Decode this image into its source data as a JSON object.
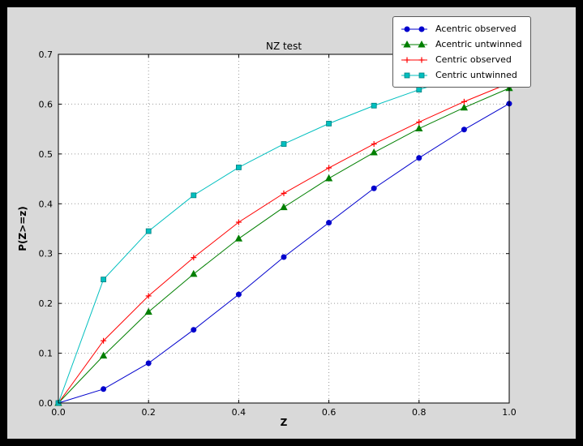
{
  "colors": {
    "window_bg": "#000000",
    "figure_bg": "#d9d9d9",
    "axes_bg": "#ffffff",
    "grid": "#9a9a9a",
    "spine": "#000000",
    "legend_border": "#5a5a5a"
  },
  "chart_data": {
    "type": "line",
    "title": "NZ test",
    "xlabel": "Z",
    "ylabel": "P(Z>=z)",
    "xlim": [
      0.0,
      1.0
    ],
    "ylim": [
      0.0,
      0.7
    ],
    "xticks": [
      0.0,
      0.2,
      0.4,
      0.6,
      0.8,
      1.0
    ],
    "yticks": [
      0.0,
      0.1,
      0.2,
      0.3,
      0.4,
      0.5,
      0.6,
      0.7
    ],
    "grid": true,
    "legend_position": "top-right",
    "x": [
      0.0,
      0.1,
      0.2,
      0.3,
      0.4,
      0.5,
      0.6,
      0.7,
      0.8,
      0.9,
      1.0
    ],
    "series": [
      {
        "name": "Acentric observed",
        "color": "#0000cd",
        "marker": "circle",
        "values": [
          0.0,
          0.028,
          0.08,
          0.147,
          0.218,
          0.293,
          0.362,
          0.431,
          0.492,
          0.549,
          0.601
        ]
      },
      {
        "name": "Acentric untwinned",
        "color": "#007f00",
        "marker": "triangle",
        "values": [
          0.0,
          0.095,
          0.183,
          0.259,
          0.33,
          0.393,
          0.451,
          0.503,
          0.551,
          0.593,
          0.632
        ]
      },
      {
        "name": "Centric observed",
        "color": "#ff0000",
        "marker": "plus",
        "values": [
          0.0,
          0.125,
          0.215,
          0.292,
          0.363,
          0.421,
          0.472,
          0.52,
          0.564,
          0.605,
          0.642
        ]
      },
      {
        "name": "Centric untwinned",
        "color": "#00bfbf",
        "marker": "square",
        "values": [
          0.0,
          0.248,
          0.345,
          0.417,
          0.473,
          0.52,
          0.561,
          0.597,
          0.629,
          0.657,
          0.683
        ]
      }
    ]
  }
}
